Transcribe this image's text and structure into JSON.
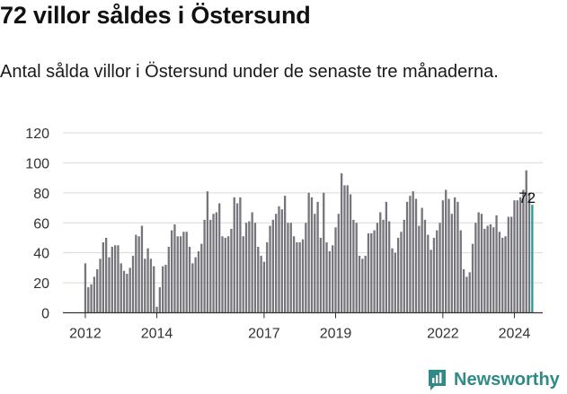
{
  "title": "72 villor såldes i Östersund",
  "subtitle": "Antal sålda villor i Östersund under de senaste tre månaderna.",
  "brand": {
    "name": "Newsworthy",
    "icon": "newsworthy-logo-icon"
  },
  "colors": {
    "bar": "#75757b",
    "highlight": "#2a9a97",
    "grid": "#d9d9d9",
    "axis": "#333333",
    "brand": "#2f8a88"
  },
  "chart_data": {
    "type": "bar",
    "ylim": [
      0,
      120
    ],
    "yticks": [
      0,
      20,
      40,
      60,
      80,
      100,
      120
    ],
    "xtick_labels": [
      "2012",
      "2014",
      "2017",
      "2019",
      "2022",
      "2024"
    ],
    "xtick_positions": [
      "2012-01",
      "2014-01",
      "2017-01",
      "2019-01",
      "2022-01",
      "2024-01"
    ],
    "grid": true,
    "start_month": "2012-01",
    "values": [
      33,
      17,
      19,
      24,
      29,
      36,
      47,
      50,
      37,
      44,
      45,
      45,
      33,
      28,
      26,
      30,
      38,
      52,
      51,
      58,
      36,
      43,
      36,
      31,
      4,
      17,
      31,
      32,
      44,
      55,
      59,
      51,
      51,
      54,
      54,
      44,
      33,
      37,
      41,
      46,
      62,
      81,
      62,
      66,
      67,
      73,
      51,
      50,
      51,
      56,
      77,
      73,
      77,
      51,
      60,
      61,
      67,
      60,
      44,
      38,
      34,
      47,
      58,
      62,
      66,
      71,
      69,
      78,
      60,
      60,
      51,
      47,
      47,
      49,
      60,
      80,
      77,
      66,
      74,
      50,
      80,
      47,
      41,
      45,
      57,
      66,
      93,
      85,
      85,
      79,
      62,
      60,
      38,
      36,
      38,
      53,
      53,
      55,
      60,
      67,
      62,
      74,
      61,
      43,
      40,
      50,
      54,
      62,
      74,
      78,
      81,
      76,
      58,
      70,
      62,
      52,
      42,
      50,
      55,
      60,
      75,
      82,
      76,
      66,
      77,
      74,
      55,
      29,
      24,
      27,
      46,
      60,
      67,
      66,
      56,
      58,
      59,
      57,
      65,
      54,
      50,
      51,
      64,
      64,
      75,
      75,
      77,
      82,
      95,
      80
    ],
    "highlight_value": 72,
    "highlight_label": "72"
  }
}
